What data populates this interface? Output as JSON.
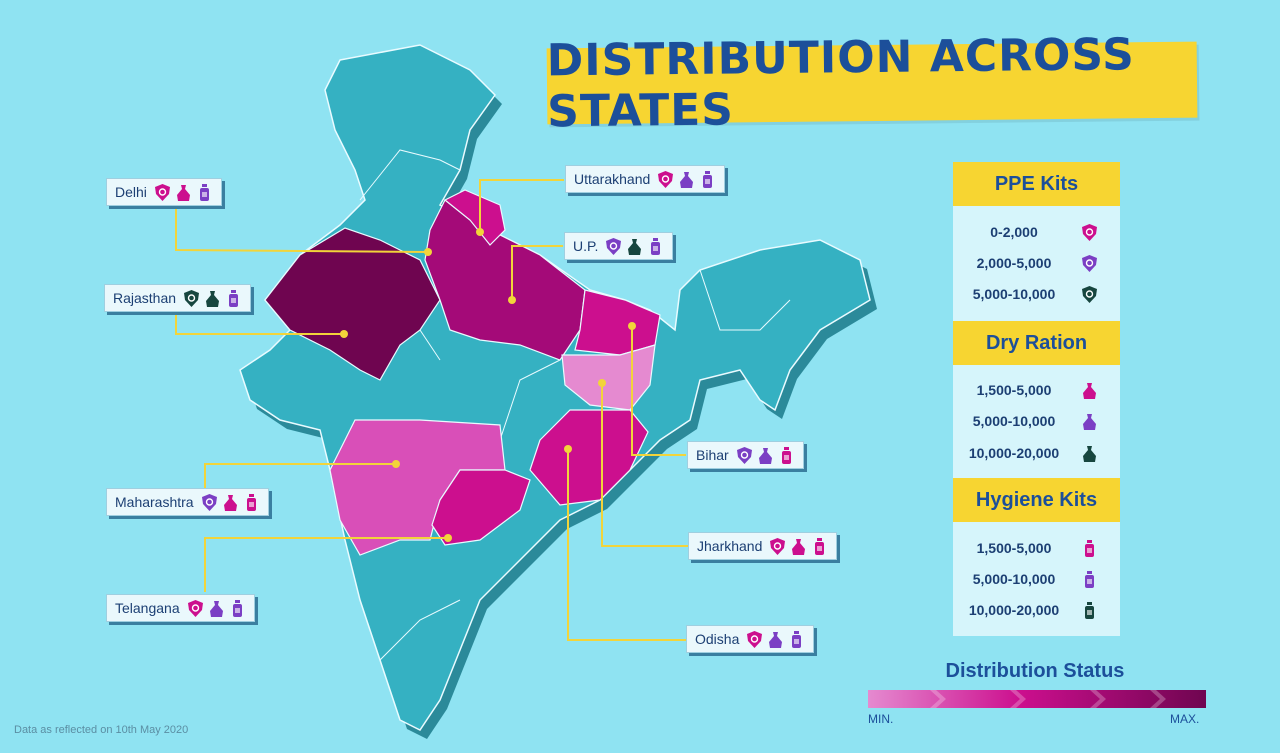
{
  "title": "DISTRIBUTION ACROSS STATES",
  "colors": {
    "background": "#8fe3f2",
    "map_base": "#35b1c2",
    "banner": "#f7d531",
    "title_text": "#1c4f9a",
    "level_min": "#e58ad0",
    "level_low": "#d94fb8",
    "level_mid": "#cc0f8e",
    "level_high": "#a40a78",
    "level_max": "#6f0550",
    "connector": "#f2d43a"
  },
  "states": [
    {
      "name": "Delhi",
      "icons": [
        "ppe-pink-shield-icon",
        "ration-pink-bag-icon",
        "hygiene-purple-bottle-icon"
      ]
    },
    {
      "name": "Rajasthan",
      "icons": [
        "ppe-dark-shield-icon",
        "ration-dark-bag-icon",
        "hygiene-purple-bottle-icon"
      ]
    },
    {
      "name": "Maharashtra",
      "icons": [
        "ppe-purple-shield-icon",
        "ration-pink-bag-icon",
        "hygiene-pink-bottle-icon"
      ]
    },
    {
      "name": "Telangana",
      "icons": [
        "ppe-pink-shield-icon",
        "ration-purple-bag-icon",
        "hygiene-purple-bottle-icon"
      ]
    },
    {
      "name": "Uttarakhand",
      "icons": [
        "ppe-pink-shield-icon",
        "ration-purple-bag-icon",
        "hygiene-purple-bottle-icon"
      ]
    },
    {
      "name": "U.P.",
      "icons": [
        "ppe-purple-shield-icon",
        "ration-dark-bag-icon",
        "hygiene-purple-bottle-icon"
      ]
    },
    {
      "name": "Bihar",
      "icons": [
        "ppe-purple-shield-icon",
        "ration-purple-bag-icon",
        "hygiene-pink-bottle-icon"
      ]
    },
    {
      "name": "Jharkhand",
      "icons": [
        "ppe-pink-shield-icon",
        "ration-pink-bag-icon",
        "hygiene-pink-bottle-icon"
      ]
    },
    {
      "name": "Odisha",
      "icons": [
        "ppe-pink-shield-icon",
        "ration-purple-bag-icon",
        "hygiene-purple-bottle-icon"
      ]
    }
  ],
  "legend": {
    "ppe": {
      "heading": "PPE Kits",
      "rows": [
        {
          "range": "0-2,000",
          "icon": "ppe-pink-shield-icon"
        },
        {
          "range": "2,000-5,000",
          "icon": "ppe-purple-shield-icon"
        },
        {
          "range": "5,000-10,000",
          "icon": "ppe-dark-shield-icon"
        }
      ]
    },
    "ration": {
      "heading": "Dry Ration",
      "rows": [
        {
          "range": "1,500-5,000",
          "icon": "ration-pink-bag-icon"
        },
        {
          "range": "5,000-10,000",
          "icon": "ration-purple-bag-icon"
        },
        {
          "range": "10,000-20,000",
          "icon": "ration-dark-bag-icon"
        }
      ]
    },
    "hygiene": {
      "heading": "Hygiene Kits",
      "rows": [
        {
          "range": "1,500-5,000",
          "icon": "hygiene-pink-bottle-icon"
        },
        {
          "range": "5,000-10,000",
          "icon": "hygiene-purple-bottle-icon"
        },
        {
          "range": "10,000-20,000",
          "icon": "hygiene-dark-bottle-icon"
        }
      ]
    }
  },
  "status": {
    "title": "Distribution Status",
    "min_label": "MIN.",
    "max_label": "MAX."
  },
  "footnote": "Data as reflected on 10th May 2020"
}
